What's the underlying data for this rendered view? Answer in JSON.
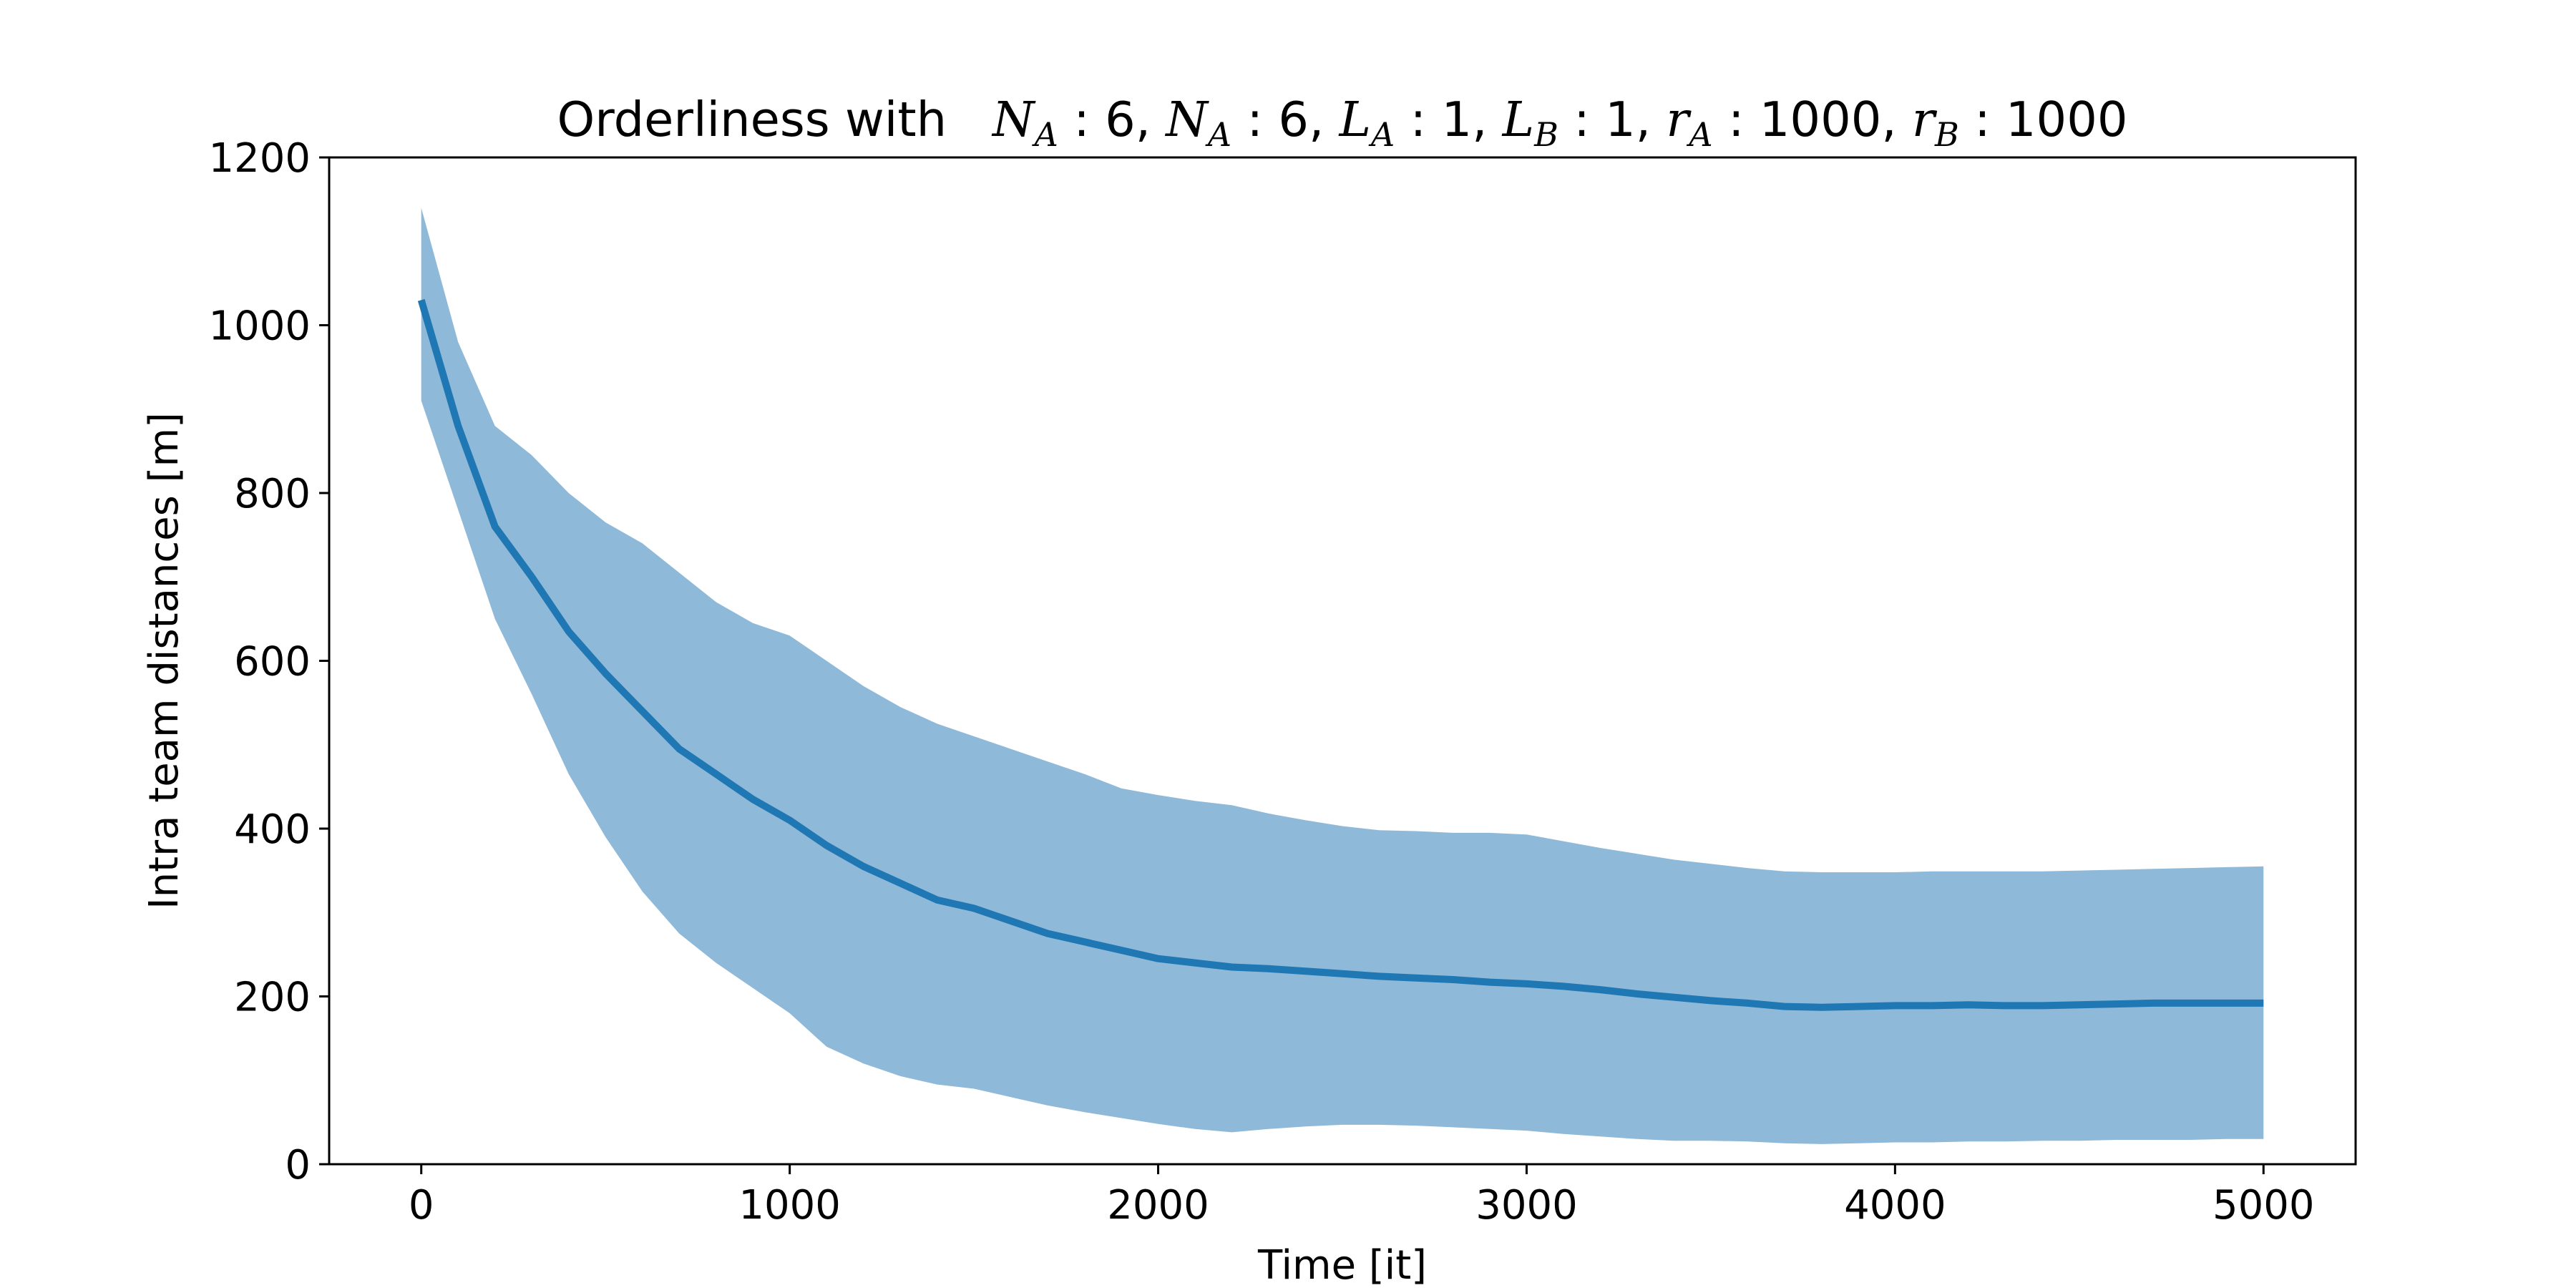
{
  "chart_data": {
    "type": "line",
    "title": "Orderliness with",
    "title_math": [
      {
        "t": "N",
        "sub": "A",
        "rest": " : 6, "
      },
      {
        "t": "N",
        "sub": "A",
        "rest": " : 6, "
      },
      {
        "t": "L",
        "sub": "A",
        "rest": " : 1, "
      },
      {
        "t": "L",
        "sub": "B",
        "rest": " : 1, "
      },
      {
        "t": "r",
        "sub": "A",
        "rest": " : 1000, "
      },
      {
        "t": "r",
        "sub": "B",
        "rest": " : 1000"
      }
    ],
    "xlabel": "Time [it]",
    "ylabel": "Intra team distances [m]",
    "xlim": [
      -250,
      5250
    ],
    "ylim": [
      0,
      1200
    ],
    "xticks": [
      0,
      1000,
      2000,
      3000,
      4000,
      5000
    ],
    "yticks": [
      0,
      200,
      400,
      600,
      800,
      1000,
      1200
    ],
    "grid": false,
    "colors": {
      "line": "#1f77b4",
      "band": "#8fb9d9",
      "axes": "#000000"
    },
    "series": [
      {
        "x": [
          0,
          100,
          200,
          300,
          400,
          500,
          600,
          700,
          800,
          900,
          1000,
          1100,
          1200,
          1300,
          1400,
          1500,
          1600,
          1700,
          1800,
          1900,
          2000,
          2100,
          2200,
          2300,
          2400,
          2500,
          2600,
          2700,
          2800,
          2900,
          3000,
          3100,
          3200,
          3300,
          3400,
          3500,
          3600,
          3700,
          3800,
          3900,
          4000,
          4100,
          4200,
          4300,
          4400,
          4500,
          4600,
          4700,
          4800,
          4900,
          5000
        ],
        "mean": [
          1030,
          880,
          760,
          700,
          635,
          585,
          540,
          495,
          465,
          435,
          410,
          380,
          355,
          335,
          315,
          305,
          290,
          275,
          265,
          255,
          245,
          240,
          235,
          233,
          230,
          227,
          224,
          222,
          220,
          217,
          215,
          212,
          208,
          203,
          199,
          195,
          192,
          188,
          187,
          188,
          189,
          189,
          190,
          189,
          189,
          190,
          191,
          192,
          192,
          192,
          192
        ],
        "upper": [
          1140,
          980,
          880,
          845,
          800,
          765,
          740,
          705,
          670,
          645,
          630,
          600,
          570,
          545,
          525,
          510,
          495,
          480,
          465,
          448,
          440,
          433,
          428,
          418,
          410,
          403,
          398,
          397,
          395,
          395,
          393,
          385,
          377,
          370,
          363,
          358,
          353,
          349,
          348,
          348,
          348,
          349,
          349,
          349,
          349,
          350,
          351,
          352,
          353,
          354,
          355
        ],
        "lower": [
          910,
          780,
          650,
          560,
          465,
          390,
          325,
          275,
          240,
          210,
          180,
          140,
          120,
          105,
          95,
          90,
          80,
          70,
          62,
          55,
          48,
          42,
          38,
          42,
          45,
          47,
          47,
          46,
          44,
          42,
          40,
          36,
          33,
          30,
          28,
          28,
          27,
          25,
          24,
          25,
          26,
          26,
          27,
          27,
          28,
          28,
          29,
          29,
          29,
          30,
          30
        ]
      }
    ]
  }
}
